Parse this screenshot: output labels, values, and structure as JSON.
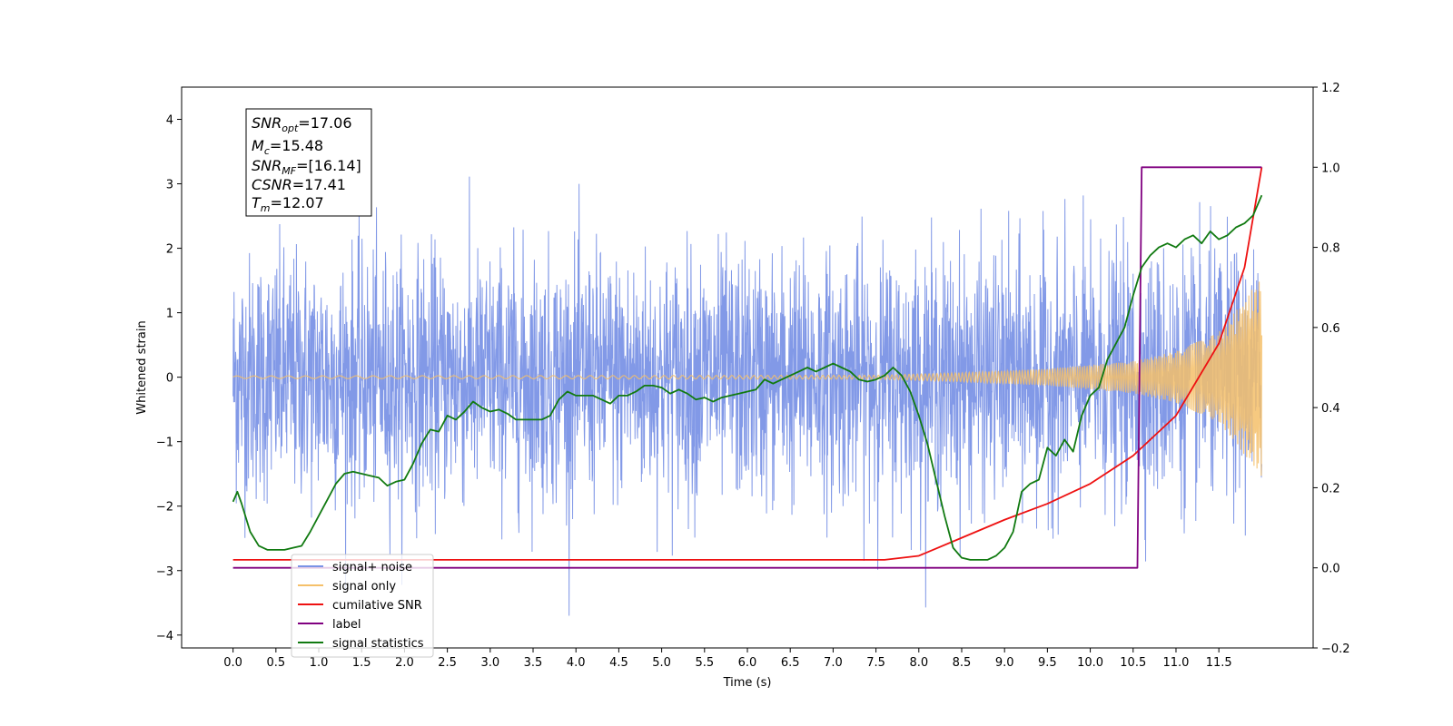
{
  "chart_data": {
    "type": "line",
    "xlabel": "Time (s)",
    "ylabel": "Whitened strain",
    "xlim": [
      -0.6,
      12.6
    ],
    "ylim": [
      -4.2,
      4.5
    ],
    "y2lim": [
      -0.2,
      1.2
    ],
    "xticks": [
      "0.0",
      "0.5",
      "1.0",
      "1.5",
      "2.0",
      "2.5",
      "3.0",
      "3.5",
      "4.0",
      "4.5",
      "5.0",
      "5.5",
      "6.0",
      "6.5",
      "7.0",
      "7.5",
      "8.0",
      "8.5",
      "9.0",
      "9.5",
      "10.0",
      "10.5",
      "11.0",
      "11.5"
    ],
    "yticks": [
      "−4",
      "−3",
      "−2",
      "−1",
      "0",
      "1",
      "2",
      "3",
      "4"
    ],
    "y2ticks": [
      "−0.2",
      "0.0",
      "0.2",
      "0.4",
      "0.6",
      "0.8",
      "1.0",
      "1.2"
    ],
    "grid": false,
    "legend_position": "lower-left",
    "stats_box": {
      "snr_opt": "=17.06",
      "mc": "=15.48",
      "snr_mf": "=[16.14]",
      "csnr": "=17.41",
      "tm": "=12.07"
    },
    "series": [
      {
        "name": "signal+ noise",
        "axis": "left",
        "color": "#7b93e6",
        "note": "dense noise around 0, amplitude ~±1.6 with spikes up to ~±4"
      },
      {
        "name": "signal only",
        "axis": "left",
        "color": "#f5c06a",
        "envelope": {
          "x": [
            0,
            7.5,
            8.5,
            9.5,
            10.5,
            11.0,
            11.5,
            12.0
          ],
          "amp": [
            0.02,
            0.03,
            0.07,
            0.13,
            0.25,
            0.4,
            0.7,
            1.55
          ]
        }
      },
      {
        "name": "cumilative SNR",
        "axis": "right",
        "color": "#ee1111",
        "x": [
          0,
          7.6,
          8.0,
          8.5,
          9.0,
          9.5,
          10.0,
          10.5,
          11.0,
          11.5,
          11.8,
          12.0
        ],
        "y": [
          0.02,
          0.02,
          0.03,
          0.075,
          0.12,
          0.16,
          0.21,
          0.28,
          0.38,
          0.56,
          0.75,
          1.0
        ]
      },
      {
        "name": "label",
        "axis": "right",
        "color": "#800080",
        "x": [
          0,
          10.55,
          10.6,
          12.0
        ],
        "y": [
          0.0,
          0.0,
          1.0,
          1.0
        ]
      },
      {
        "name": "signal statistics",
        "axis": "right",
        "color": "#117a11",
        "x": [
          0,
          0.05,
          0.1,
          0.2,
          0.3,
          0.4,
          0.5,
          0.6,
          0.7,
          0.8,
          0.9,
          1.0,
          1.1,
          1.2,
          1.3,
          1.4,
          1.5,
          1.6,
          1.7,
          1.8,
          1.9,
          2.0,
          2.1,
          2.2,
          2.3,
          2.4,
          2.5,
          2.6,
          2.7,
          2.8,
          2.9,
          3.0,
          3.1,
          3.2,
          3.3,
          3.4,
          3.5,
          3.6,
          3.7,
          3.8,
          3.9,
          4.0,
          4.1,
          4.2,
          4.3,
          4.4,
          4.5,
          4.6,
          4.7,
          4.8,
          4.9,
          5.0,
          5.1,
          5.2,
          5.3,
          5.4,
          5.5,
          5.6,
          5.7,
          5.8,
          5.9,
          6.0,
          6.1,
          6.2,
          6.3,
          6.4,
          6.5,
          6.6,
          6.7,
          6.8,
          6.9,
          7.0,
          7.1,
          7.2,
          7.3,
          7.4,
          7.5,
          7.6,
          7.7,
          7.8,
          7.9,
          8.0,
          8.1,
          8.2,
          8.3,
          8.4,
          8.5,
          8.6,
          8.7,
          8.8,
          8.9,
          9.0,
          9.1,
          9.2,
          9.3,
          9.4,
          9.5,
          9.6,
          9.7,
          9.8,
          9.9,
          10.0,
          10.1,
          10.2,
          10.3,
          10.4,
          10.5,
          10.6,
          10.7,
          10.8,
          10.9,
          11.0,
          11.1,
          11.2,
          11.3,
          11.4,
          11.5,
          11.6,
          11.7,
          11.8,
          11.9,
          12.0
        ],
        "y": [
          0.165,
          0.19,
          0.16,
          0.09,
          0.055,
          0.045,
          0.045,
          0.045,
          0.05,
          0.055,
          0.09,
          0.13,
          0.17,
          0.21,
          0.235,
          0.24,
          0.235,
          0.23,
          0.225,
          0.205,
          0.215,
          0.22,
          0.26,
          0.31,
          0.345,
          0.34,
          0.38,
          0.37,
          0.39,
          0.415,
          0.4,
          0.39,
          0.395,
          0.385,
          0.37,
          0.37,
          0.37,
          0.37,
          0.38,
          0.42,
          0.44,
          0.43,
          0.43,
          0.43,
          0.42,
          0.41,
          0.43,
          0.43,
          0.44,
          0.455,
          0.455,
          0.45,
          0.435,
          0.445,
          0.435,
          0.42,
          0.425,
          0.415,
          0.425,
          0.43,
          0.435,
          0.44,
          0.445,
          0.47,
          0.46,
          0.47,
          0.48,
          0.49,
          0.5,
          0.49,
          0.5,
          0.51,
          0.5,
          0.49,
          0.47,
          0.465,
          0.47,
          0.48,
          0.5,
          0.48,
          0.44,
          0.38,
          0.31,
          0.22,
          0.13,
          0.05,
          0.025,
          0.02,
          0.02,
          0.02,
          0.03,
          0.05,
          0.09,
          0.19,
          0.21,
          0.22,
          0.3,
          0.28,
          0.32,
          0.29,
          0.38,
          0.43,
          0.45,
          0.52,
          0.56,
          0.6,
          0.68,
          0.75,
          0.78,
          0.8,
          0.81,
          0.8,
          0.82,
          0.83,
          0.81,
          0.84,
          0.82,
          0.83,
          0.85,
          0.86,
          0.88,
          0.93
        ]
      }
    ]
  }
}
